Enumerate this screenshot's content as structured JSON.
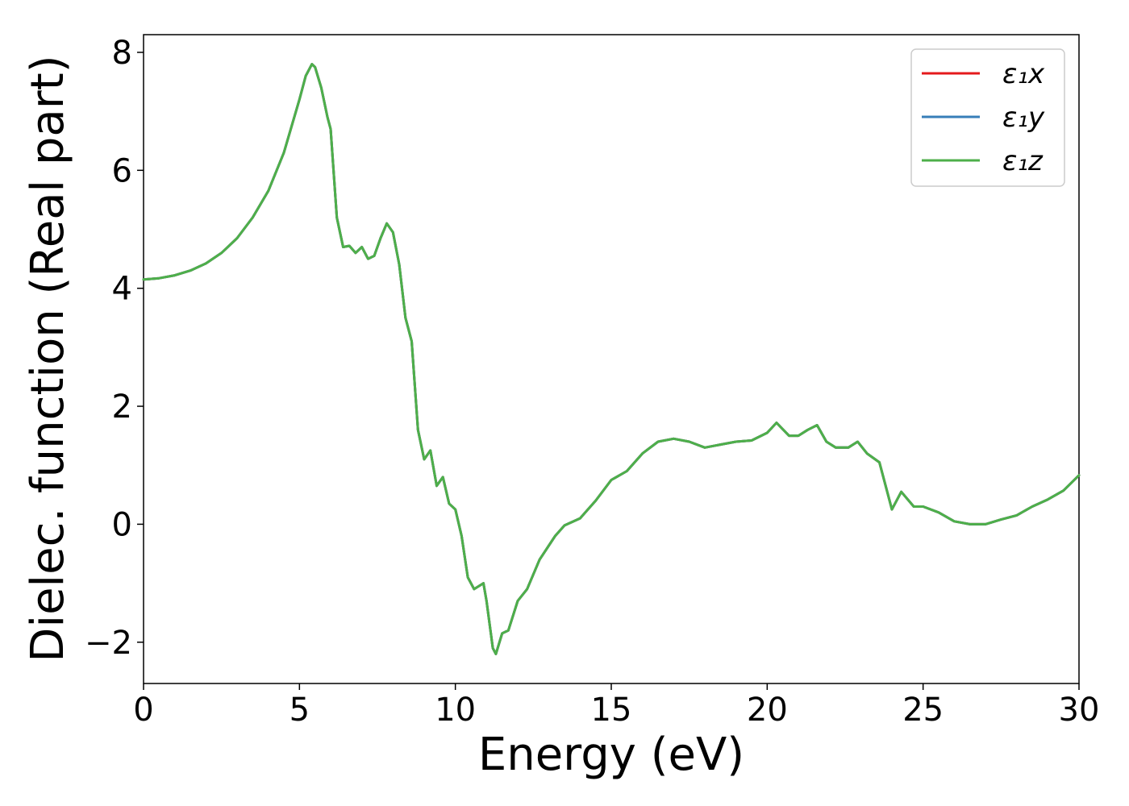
{
  "chart_data": {
    "type": "line",
    "title": "",
    "xlabel": "Energy (eV)",
    "ylabel": "Dielec. function (Real part)",
    "xlim": [
      0,
      30
    ],
    "ylim": [
      -2.7,
      8.3
    ],
    "xticks": [
      0,
      5,
      10,
      15,
      20,
      25,
      30
    ],
    "xtick_labels": [
      "0",
      "5",
      "10",
      "15",
      "20",
      "25",
      "30"
    ],
    "yticks": [
      -2,
      0,
      2,
      4,
      6,
      8
    ],
    "ytick_labels": [
      "−2",
      "0",
      "2",
      "4",
      "6",
      "8"
    ],
    "grid": false,
    "legend_position": "top-right",
    "x": [
      0.0,
      0.5,
      1.0,
      1.5,
      2.0,
      2.5,
      3.0,
      3.5,
      4.0,
      4.5,
      5.0,
      5.2,
      5.4,
      5.5,
      5.7,
      5.9,
      6.0,
      6.2,
      6.4,
      6.6,
      6.8,
      7.0,
      7.2,
      7.4,
      7.6,
      7.8,
      8.0,
      8.2,
      8.4,
      8.6,
      8.8,
      9.0,
      9.2,
      9.4,
      9.6,
      9.8,
      10.0,
      10.2,
      10.4,
      10.6,
      10.9,
      11.0,
      11.2,
      11.3,
      11.5,
      11.7,
      12.0,
      12.3,
      12.7,
      13.2,
      13.5,
      14.0,
      14.5,
      15.0,
      15.5,
      16.0,
      16.5,
      17.0,
      17.5,
      18.0,
      18.5,
      19.0,
      19.5,
      20.0,
      20.3,
      20.7,
      21.0,
      21.3,
      21.6,
      21.9,
      22.2,
      22.6,
      22.9,
      23.2,
      23.6,
      24.0,
      24.3,
      24.7,
      25.0,
      25.5,
      26.0,
      26.5,
      27.0,
      27.5,
      28.0,
      28.5,
      29.0,
      29.5,
      30.0
    ],
    "series": [
      {
        "name": "ε₁x",
        "color": "#e41a1c",
        "values": [
          4.15,
          4.17,
          4.22,
          4.3,
          4.42,
          4.6,
          4.85,
          5.2,
          5.65,
          6.3,
          7.2,
          7.6,
          7.8,
          7.75,
          7.4,
          6.9,
          6.7,
          5.2,
          4.7,
          4.72,
          4.6,
          4.7,
          4.5,
          4.55,
          4.85,
          5.1,
          4.95,
          4.4,
          3.5,
          3.1,
          1.6,
          1.1,
          1.25,
          0.65,
          0.8,
          0.35,
          0.25,
          -0.2,
          -0.9,
          -1.1,
          -1.0,
          -1.3,
          -2.1,
          -2.2,
          -1.85,
          -1.8,
          -1.3,
          -1.1,
          -0.6,
          -0.2,
          -0.02,
          0.1,
          0.4,
          0.75,
          0.9,
          1.2,
          1.4,
          1.45,
          1.4,
          1.3,
          1.35,
          1.4,
          1.42,
          1.55,
          1.72,
          1.5,
          1.5,
          1.6,
          1.68,
          1.4,
          1.3,
          1.3,
          1.4,
          1.2,
          1.05,
          0.25,
          0.55,
          0.3,
          0.3,
          0.2,
          0.05,
          0.0,
          0.0,
          0.08,
          0.15,
          0.3,
          0.42,
          0.57,
          0.83
        ]
      },
      {
        "name": "ε₁y",
        "color": "#377eb8",
        "values": [
          4.15,
          4.17,
          4.22,
          4.3,
          4.42,
          4.6,
          4.85,
          5.2,
          5.65,
          6.3,
          7.2,
          7.6,
          7.8,
          7.75,
          7.4,
          6.9,
          6.7,
          5.2,
          4.7,
          4.72,
          4.6,
          4.7,
          4.5,
          4.55,
          4.85,
          5.1,
          4.95,
          4.4,
          3.5,
          3.1,
          1.6,
          1.1,
          1.25,
          0.65,
          0.8,
          0.35,
          0.25,
          -0.2,
          -0.9,
          -1.1,
          -1.0,
          -1.3,
          -2.1,
          -2.2,
          -1.85,
          -1.8,
          -1.3,
          -1.1,
          -0.6,
          -0.2,
          -0.02,
          0.1,
          0.4,
          0.75,
          0.9,
          1.2,
          1.4,
          1.45,
          1.4,
          1.3,
          1.35,
          1.4,
          1.42,
          1.55,
          1.72,
          1.5,
          1.5,
          1.6,
          1.68,
          1.4,
          1.3,
          1.3,
          1.4,
          1.2,
          1.05,
          0.25,
          0.55,
          0.3,
          0.3,
          0.2,
          0.05,
          0.0,
          0.0,
          0.08,
          0.15,
          0.3,
          0.42,
          0.57,
          0.83
        ]
      },
      {
        "name": "ε₁z",
        "color": "#4daf4a",
        "values": [
          4.15,
          4.17,
          4.22,
          4.3,
          4.42,
          4.6,
          4.85,
          5.2,
          5.65,
          6.3,
          7.2,
          7.6,
          7.8,
          7.75,
          7.4,
          6.9,
          6.7,
          5.2,
          4.7,
          4.72,
          4.6,
          4.7,
          4.5,
          4.55,
          4.85,
          5.1,
          4.95,
          4.4,
          3.5,
          3.1,
          1.6,
          1.1,
          1.25,
          0.65,
          0.8,
          0.35,
          0.25,
          -0.2,
          -0.9,
          -1.1,
          -1.0,
          -1.3,
          -2.1,
          -2.2,
          -1.85,
          -1.8,
          -1.3,
          -1.1,
          -0.6,
          -0.2,
          -0.02,
          0.1,
          0.4,
          0.75,
          0.9,
          1.2,
          1.4,
          1.45,
          1.4,
          1.3,
          1.35,
          1.4,
          1.42,
          1.55,
          1.72,
          1.5,
          1.5,
          1.6,
          1.68,
          1.4,
          1.3,
          1.3,
          1.4,
          1.2,
          1.05,
          0.25,
          0.55,
          0.3,
          0.3,
          0.2,
          0.05,
          0.0,
          0.0,
          0.08,
          0.15,
          0.3,
          0.42,
          0.57,
          0.83
        ]
      }
    ]
  }
}
